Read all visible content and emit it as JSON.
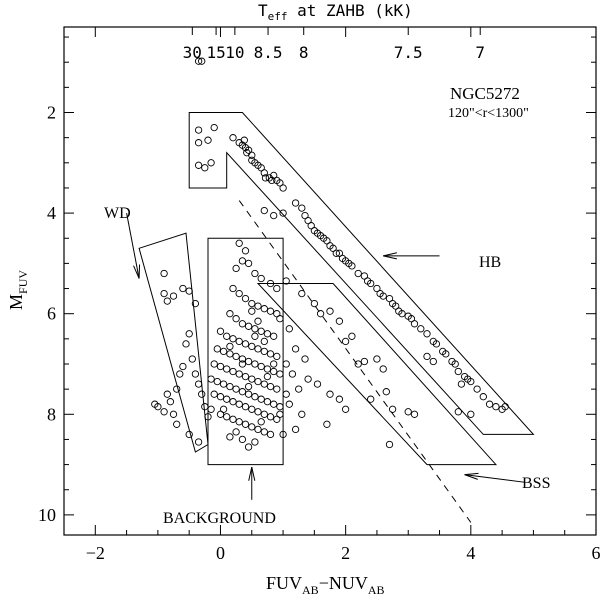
{
  "chart_data": {
    "type": "scatter",
    "x_axis": {
      "label_main": "FUV",
      "label_sub1": "AB",
      "label_minus": "−NUV",
      "label_sub2": "AB",
      "range": [
        -2.5,
        6
      ],
      "major_ticks": [
        -2,
        0,
        2,
        4,
        6
      ],
      "tick_labels": [
        "−2",
        "0",
        "2",
        "4",
        "6"
      ]
    },
    "y_axis": {
      "label_main": "M",
      "label_sub": "FUV",
      "range": [
        0.3,
        10.4
      ],
      "inverted": true,
      "major_ticks": [
        2,
        4,
        6,
        8,
        10
      ],
      "tick_labels": [
        "2",
        "4",
        "6",
        "8",
        "10"
      ]
    },
    "top_axis": {
      "label_main": "T",
      "label_sub": "eff",
      "label_rest": " at ZAHB (kK)",
      "tick_labels": [
        "30",
        "15",
        "10",
        "8.5",
        "8",
        "7.5",
        "7"
      ],
      "tick_x": [
        -0.45,
        -0.07,
        0.23,
        0.76,
        1.33,
        3.0,
        4.15
      ]
    },
    "annotations": {
      "cluster": "NGC5272",
      "radius": "120\"<r<1300\"",
      "wd": "WD",
      "hb": "HB",
      "bss": "BSS",
      "background": "BACKGROUND"
    },
    "regions": [
      {
        "name": "HB box",
        "points": [
          [
            -0.5,
            2
          ],
          [
            0.35,
            2
          ],
          [
            5,
            8.4
          ],
          [
            4.2,
            8.4
          ],
          [
            0.1,
            2.8
          ],
          [
            0.1,
            3.5
          ],
          [
            -0.5,
            3.5
          ]
        ]
      },
      {
        "name": "BSS box",
        "points": [
          [
            0.6,
            5.4
          ],
          [
            1.8,
            5.4
          ],
          [
            4.4,
            9
          ],
          [
            3.3,
            9
          ]
        ]
      },
      {
        "name": "WD box",
        "points": [
          [
            -1.3,
            4.7
          ],
          [
            -0.55,
            4.4
          ],
          [
            -0.2,
            8.6
          ],
          [
            -0.4,
            8.75
          ]
        ]
      },
      {
        "name": "Background box",
        "points": [
          [
            -0.2,
            4.5
          ],
          [
            1,
            4.5
          ],
          [
            1,
            9
          ],
          [
            -0.2,
            9
          ]
        ]
      }
    ],
    "dashed_line": [
      [
        0.3,
        3.75
      ],
      [
        4,
        10.15
      ]
    ],
    "arrows": [
      {
        "name": "wd-arrow",
        "from": [
          -1.5,
          4.0
        ],
        "to": [
          -1.3,
          5.3
        ]
      },
      {
        "name": "hb-arrow",
        "from": [
          3.5,
          4.85
        ],
        "to": [
          2.6,
          4.85
        ]
      },
      {
        "name": "bss-arrow",
        "from": [
          4.85,
          9.35
        ],
        "to": [
          3.9,
          9.2
        ]
      },
      {
        "name": "background-arrow",
        "from": [
          0.5,
          9.7
        ],
        "to": [
          0.5,
          9.05
        ]
      }
    ],
    "points": [
      [
        -0.35,
        0.98
      ],
      [
        -0.3,
        0.98
      ],
      [
        -0.35,
        2.35
      ],
      [
        -0.1,
        2.3
      ],
      [
        -0.35,
        2.6
      ],
      [
        -0.2,
        2.55
      ],
      [
        -0.15,
        3.0
      ],
      [
        -0.25,
        3.1
      ],
      [
        -0.35,
        3.05
      ],
      [
        0.2,
        2.5
      ],
      [
        0.3,
        2.6
      ],
      [
        0.35,
        2.65
      ],
      [
        0.4,
        2.7
      ],
      [
        0.42,
        2.8
      ],
      [
        0.45,
        2.75
      ],
      [
        0.38,
        2.55
      ],
      [
        0.5,
        2.85
      ],
      [
        0.5,
        2.95
      ],
      [
        0.55,
        3.0
      ],
      [
        0.6,
        3.05
      ],
      [
        0.65,
        3.1
      ],
      [
        0.7,
        3.2
      ],
      [
        0.72,
        3.3
      ],
      [
        0.78,
        3.3
      ],
      [
        0.82,
        3.35
      ],
      [
        0.9,
        3.35
      ],
      [
        0.85,
        3.25
      ],
      [
        0.95,
        3.4
      ],
      [
        1.0,
        3.5
      ],
      [
        0.7,
        3.95
      ],
      [
        0.85,
        4.05
      ],
      [
        1.0,
        4.0
      ],
      [
        1.2,
        3.8
      ],
      [
        1.3,
        3.9
      ],
      [
        1.35,
        4.05
      ],
      [
        1.4,
        4.15
      ],
      [
        1.45,
        4.25
      ],
      [
        1.5,
        4.35
      ],
      [
        1.55,
        4.4
      ],
      [
        1.6,
        4.45
      ],
      [
        1.65,
        4.5
      ],
      [
        1.7,
        4.55
      ],
      [
        1.75,
        4.65
      ],
      [
        1.8,
        4.7
      ],
      [
        1.85,
        4.8
      ],
      [
        1.9,
        4.8
      ],
      [
        1.95,
        4.9
      ],
      [
        2.0,
        4.95
      ],
      [
        2.05,
        5.0
      ],
      [
        2.1,
        5.05
      ],
      [
        2.2,
        5.2
      ],
      [
        2.3,
        5.25
      ],
      [
        2.35,
        5.35
      ],
      [
        2.4,
        5.4
      ],
      [
        2.5,
        5.5
      ],
      [
        2.55,
        5.6
      ],
      [
        2.6,
        5.65
      ],
      [
        2.7,
        5.7
      ],
      [
        2.75,
        5.8
      ],
      [
        2.8,
        5.85
      ],
      [
        2.85,
        5.95
      ],
      [
        2.9,
        6.0
      ],
      [
        3.0,
        6.05
      ],
      [
        3.05,
        6.1
      ],
      [
        3.1,
        6.2
      ],
      [
        3.2,
        6.3
      ],
      [
        3.3,
        6.4
      ],
      [
        3.4,
        6.55
      ],
      [
        3.45,
        6.6
      ],
      [
        3.55,
        6.75
      ],
      [
        3.6,
        6.8
      ],
      [
        3.7,
        6.95
      ],
      [
        3.75,
        7.0
      ],
      [
        3.8,
        7.15
      ],
      [
        3.9,
        7.25
      ],
      [
        3.95,
        7.3
      ],
      [
        4.0,
        7.35
      ],
      [
        4.1,
        7.5
      ],
      [
        4.2,
        7.65
      ],
      [
        4.3,
        7.8
      ],
      [
        4.4,
        7.85
      ],
      [
        4.5,
        7.9
      ],
      [
        4.55,
        7.85
      ],
      [
        3.3,
        6.85
      ],
      [
        3.4,
        6.95
      ],
      [
        3.85,
        7.4
      ],
      [
        1.05,
        5.35
      ],
      [
        1.3,
        5.6
      ],
      [
        1.5,
        5.8
      ],
      [
        1.6,
        6.0
      ],
      [
        1.75,
        5.95
      ],
      [
        1.9,
        6.15
      ],
      [
        2.0,
        6.55
      ],
      [
        2.1,
        6.45
      ],
      [
        2.2,
        7.0
      ],
      [
        2.3,
        6.95
      ],
      [
        2.5,
        6.9
      ],
      [
        2.6,
        7.1
      ],
      [
        2.4,
        7.7
      ],
      [
        2.65,
        7.55
      ],
      [
        2.75,
        7.9
      ],
      [
        3.0,
        7.95
      ],
      [
        3.1,
        8.0
      ],
      [
        3.8,
        7.95
      ],
      [
        4.0,
        8.0
      ],
      [
        2.7,
        8.6
      ],
      [
        1.55,
        7.4
      ],
      [
        1.75,
        7.6
      ],
      [
        1.9,
        7.7
      ],
      [
        2.0,
        7.9
      ],
      [
        1.7,
        8.2
      ],
      [
        -1.0,
        7.85
      ],
      [
        -0.9,
        7.95
      ],
      [
        -0.8,
        7.75
      ],
      [
        -0.75,
        8.0
      ],
      [
        -0.85,
        7.6
      ],
      [
        -0.7,
        7.5
      ],
      [
        -0.65,
        7.2
      ],
      [
        -0.6,
        7.05
      ],
      [
        -0.55,
        6.6
      ],
      [
        -0.5,
        6.4
      ],
      [
        -0.45,
        6.9
      ],
      [
        -0.4,
        7.2
      ],
      [
        -0.35,
        7.4
      ],
      [
        -0.3,
        7.6
      ],
      [
        -0.25,
        7.85
      ],
      [
        -0.2,
        8.05
      ],
      [
        -0.15,
        7.9
      ],
      [
        -0.9,
        5.6
      ],
      [
        -0.85,
        5.75
      ],
      [
        -0.75,
        5.65
      ],
      [
        -0.6,
        5.5
      ],
      [
        -0.5,
        5.55
      ],
      [
        -0.4,
        5.8
      ],
      [
        -0.9,
        5.2
      ],
      [
        -1.05,
        7.8
      ],
      [
        -0.7,
        8.2
      ],
      [
        -0.5,
        8.4
      ],
      [
        -0.35,
        8.55
      ],
      [
        0.3,
        4.6
      ],
      [
        0.4,
        4.75
      ],
      [
        0.35,
        4.95
      ],
      [
        0.45,
        5.0
      ],
      [
        0.25,
        5.1
      ],
      [
        0.55,
        5.2
      ],
      [
        0.65,
        5.3
      ],
      [
        0.8,
        5.4
      ],
      [
        0.9,
        5.5
      ],
      [
        0.2,
        5.5
      ],
      [
        0.3,
        5.6
      ],
      [
        0.4,
        5.7
      ],
      [
        0.5,
        5.8
      ],
      [
        0.6,
        5.85
      ],
      [
        0.7,
        5.9
      ],
      [
        0.8,
        5.95
      ],
      [
        0.9,
        6.0
      ],
      [
        0.95,
        6.1
      ],
      [
        0.15,
        6.0
      ],
      [
        0.25,
        6.1
      ],
      [
        0.35,
        6.2
      ],
      [
        0.45,
        6.25
      ],
      [
        0.55,
        6.3
      ],
      [
        0.65,
        6.35
      ],
      [
        0.75,
        6.4
      ],
      [
        0.85,
        6.45
      ],
      [
        0.0,
        6.35
      ],
      [
        0.1,
        6.45
      ],
      [
        0.2,
        6.5
      ],
      [
        0.3,
        6.55
      ],
      [
        0.4,
        6.6
      ],
      [
        0.5,
        6.65
      ],
      [
        0.6,
        6.7
      ],
      [
        0.7,
        6.75
      ],
      [
        0.8,
        6.8
      ],
      [
        0.9,
        6.85
      ],
      [
        -0.05,
        6.7
      ],
      [
        0.05,
        6.75
      ],
      [
        0.15,
        6.8
      ],
      [
        0.25,
        6.85
      ],
      [
        0.35,
        6.9
      ],
      [
        0.45,
        6.95
      ],
      [
        0.55,
        7.0
      ],
      [
        0.65,
        7.05
      ],
      [
        0.75,
        7.1
      ],
      [
        0.85,
        7.15
      ],
      [
        0.95,
        7.2
      ],
      [
        -0.1,
        7.0
      ],
      [
        0.0,
        7.05
      ],
      [
        0.1,
        7.1
      ],
      [
        0.2,
        7.15
      ],
      [
        0.3,
        7.2
      ],
      [
        0.4,
        7.25
      ],
      [
        0.5,
        7.3
      ],
      [
        0.6,
        7.35
      ],
      [
        0.7,
        7.4
      ],
      [
        0.8,
        7.45
      ],
      [
        0.9,
        7.5
      ],
      [
        -0.15,
        7.3
      ],
      [
        -0.05,
        7.35
      ],
      [
        0.05,
        7.4
      ],
      [
        0.15,
        7.45
      ],
      [
        0.25,
        7.5
      ],
      [
        0.35,
        7.55
      ],
      [
        0.45,
        7.6
      ],
      [
        0.55,
        7.65
      ],
      [
        0.65,
        7.7
      ],
      [
        0.75,
        7.75
      ],
      [
        0.85,
        7.8
      ],
      [
        0.95,
        7.85
      ],
      [
        -0.1,
        7.6
      ],
      [
        0.0,
        7.65
      ],
      [
        0.1,
        7.7
      ],
      [
        0.2,
        7.75
      ],
      [
        0.3,
        7.8
      ],
      [
        0.4,
        7.85
      ],
      [
        0.5,
        7.9
      ],
      [
        0.6,
        7.95
      ],
      [
        0.7,
        8.0
      ],
      [
        0.8,
        8.05
      ],
      [
        0.9,
        8.1
      ],
      [
        0.0,
        8.0
      ],
      [
        0.1,
        8.05
      ],
      [
        0.2,
        8.1
      ],
      [
        0.3,
        8.15
      ],
      [
        0.4,
        8.2
      ],
      [
        0.5,
        8.25
      ],
      [
        0.6,
        8.3
      ],
      [
        0.7,
        8.35
      ],
      [
        0.8,
        8.4
      ],
      [
        0.15,
        8.45
      ],
      [
        0.35,
        8.5
      ],
      [
        0.55,
        8.55
      ],
      [
        0.45,
        8.65
      ],
      [
        1.1,
        6.3
      ],
      [
        1.2,
        6.7
      ],
      [
        1.05,
        7.0
      ],
      [
        1.15,
        7.2
      ],
      [
        1.25,
        7.5
      ],
      [
        1.1,
        7.8
      ],
      [
        1.3,
        8.0
      ],
      [
        1.2,
        8.3
      ],
      [
        1.0,
        8.4
      ],
      [
        1.35,
        6.9
      ],
      [
        1.4,
        7.3
      ],
      [
        0.95,
        8.0
      ],
      [
        1.05,
        7.6
      ],
      [
        0.25,
        8.35
      ],
      [
        0.65,
        8.15
      ],
      [
        0.75,
        7.25
      ],
      [
        0.35,
        7.0
      ],
      [
        0.55,
        6.45
      ],
      [
        0.15,
        6.65
      ],
      [
        0.45,
        7.45
      ],
      [
        0.05,
        7.9
      ],
      [
        0.7,
        6.55
      ],
      [
        0.85,
        7.0
      ],
      [
        0.5,
        5.95
      ],
      [
        0.6,
        6.15
      ]
    ]
  }
}
